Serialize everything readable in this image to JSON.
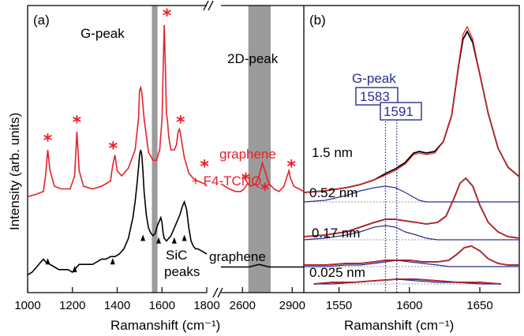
{
  "chart_data": [
    {
      "panel": "(a)",
      "type": "line",
      "xlabel": "Ramanshift (cm⁻¹)",
      "ylabel": "Intensity (arb. units)",
      "x_axis_break": true,
      "x_ticks_left": [
        "1000",
        "1200",
        "1400",
        "1600",
        "1800"
      ],
      "x_ticks_right": [
        "2600",
        "2900"
      ],
      "xlim_left": [
        1000,
        1800
      ],
      "xlim_right": [
        2470,
        2970
      ],
      "shaded_regions": [
        [
          1555,
          1580
        ],
        [
          2635,
          2770
        ]
      ],
      "annotations": [
        "G-peak",
        "2D-peak",
        "SiC",
        "peaks"
      ],
      "series": [
        {
          "name": "graphene + F4-TCNQ",
          "name_lines": [
            "graphene",
            "+ F4-TCNQ"
          ],
          "color": "#e8202a",
          "x": [
            1000,
            1040,
            1070,
            1080,
            1090,
            1100,
            1120,
            1150,
            1190,
            1210,
            1220,
            1230,
            1250,
            1290,
            1330,
            1370,
            1380,
            1390,
            1400,
            1420,
            1450,
            1480,
            1495,
            1500,
            1505,
            1510,
            1520,
            1540,
            1560,
            1575,
            1590,
            1600,
            1605,
            1610,
            1615,
            1620,
            1625,
            1630,
            1640,
            1655,
            1665,
            1672,
            1678,
            1683,
            1690,
            1700,
            1710,
            1720,
            1740,
            1760,
            1790,
            1800
          ],
          "y": [
            0.32,
            0.33,
            0.34,
            0.4,
            0.5,
            0.42,
            0.36,
            0.35,
            0.35,
            0.4,
            0.57,
            0.42,
            0.36,
            0.35,
            0.36,
            0.38,
            0.44,
            0.48,
            0.42,
            0.4,
            0.43,
            0.5,
            0.62,
            0.73,
            0.74,
            0.72,
            0.62,
            0.49,
            0.46,
            0.46,
            0.5,
            0.62,
            0.8,
            0.98,
            0.83,
            0.64,
            0.61,
            0.55,
            0.5,
            0.5,
            0.52,
            0.57,
            0.58,
            0.56,
            0.52,
            0.47,
            0.44,
            0.41,
            0.39,
            0.38,
            0.37,
            0.36
          ],
          "x_right": [
            2470,
            2520,
            2560,
            2590,
            2610,
            2630,
            2650,
            2680,
            2700,
            2720,
            2740,
            2760,
            2790,
            2820,
            2850,
            2870,
            2880,
            2890,
            2910,
            2940,
            2970
          ],
          "y_right": [
            0.37,
            0.35,
            0.34,
            0.34,
            0.35,
            0.37,
            0.36,
            0.37,
            0.4,
            0.45,
            0.41,
            0.37,
            0.35,
            0.34,
            0.36,
            0.4,
            0.42,
            0.39,
            0.36,
            0.35,
            0.34
          ],
          "markers": {
            "symbol": "*",
            "x": [
              1090,
              1220,
              1382,
              1622,
              1683,
              1790
            ],
            "y": [
              0.55,
              0.62,
              0.52,
              1.03,
              0.62,
              0.45
            ],
            "x_right": [
              2620,
              2735,
              2895
            ],
            "y_right": [
              0.4,
              0.36,
              0.45
            ]
          }
        },
        {
          "name": "graphene",
          "color": "#000000",
          "x": [
            1000,
            1020,
            1040,
            1060,
            1070,
            1080,
            1100,
            1120,
            1140,
            1160,
            1180,
            1200,
            1210,
            1230,
            1260,
            1290,
            1310,
            1330,
            1350,
            1370,
            1390,
            1410,
            1430,
            1450,
            1470,
            1480,
            1490,
            1500,
            1505,
            1510,
            1515,
            1520,
            1530,
            1540,
            1550,
            1560,
            1570,
            1580,
            1595,
            1600,
            1605,
            1610,
            1620,
            1640,
            1660,
            1670,
            1680,
            1690,
            1700,
            1710,
            1720,
            1730,
            1740,
            1750,
            1760,
            1780,
            1800
          ],
          "y": [
            0.02,
            0.03,
            0.05,
            0.07,
            0.08,
            0.07,
            0.06,
            0.05,
            0.04,
            0.04,
            0.04,
            0.03,
            0.04,
            0.06,
            0.06,
            0.06,
            0.07,
            0.08,
            0.08,
            0.09,
            0.09,
            0.1,
            0.12,
            0.16,
            0.24,
            0.3,
            0.38,
            0.48,
            0.5,
            0.48,
            0.42,
            0.34,
            0.25,
            0.2,
            0.18,
            0.17,
            0.18,
            0.21,
            0.24,
            0.22,
            0.18,
            0.16,
            0.15,
            0.17,
            0.21,
            0.23,
            0.25,
            0.28,
            0.3,
            0.27,
            0.2,
            0.15,
            0.13,
            0.12,
            0.12,
            0.11,
            0.1
          ],
          "x_right": [
            2470,
            2520,
            2560,
            2600,
            2640,
            2700,
            2760,
            2800,
            2850,
            2900,
            2970
          ],
          "y_right": [
            0.05,
            0.05,
            0.05,
            0.05,
            0.05,
            0.06,
            0.05,
            0.05,
            0.05,
            0.05,
            0.05
          ],
          "markers": {
            "symbol": "▲",
            "x": [
              1090,
              1210,
              1380,
              1515,
              1585,
              1655,
              1700
            ],
            "y": [
              0.06,
              0.03,
              0.06,
              0.15,
              0.14,
              0.14,
              0.15
            ]
          }
        }
      ]
    },
    {
      "panel": "(b)",
      "type": "line",
      "xlabel": "Ramanshift (cm⁻¹)",
      "x_ticks": [
        "1550",
        "1600",
        "1650"
      ],
      "xlim": [
        1525,
        1678
      ],
      "vertical_lines": [
        {
          "x": 1583,
          "label": "1583",
          "style": "dotted",
          "color": "#2b2f8f"
        },
        {
          "x": 1591,
          "label": "1591",
          "style": "dotted",
          "color": "#2b2f8f"
        }
      ],
      "annotation": "G-peak",
      "curve_colors": {
        "measured": "#000000",
        "fit": "#e8202a",
        "g_peak_component": "#2b2f8f",
        "other_components": "#999999"
      },
      "groups": [
        {
          "label": "1.5 nm",
          "x": [
            1525,
            1540,
            1555,
            1565,
            1575,
            1583,
            1590,
            1597,
            1603,
            1607,
            1612,
            1618,
            1624,
            1630,
            1635,
            1638,
            1641,
            1645,
            1650,
            1656,
            1663,
            1670,
            1678
          ],
          "measured": [
            0.58,
            0.59,
            0.61,
            0.63,
            0.66,
            0.7,
            0.73,
            0.77,
            0.83,
            0.84,
            0.83,
            0.84,
            0.9,
            1.07,
            1.39,
            1.55,
            1.6,
            1.53,
            1.33,
            1.08,
            0.86,
            0.74,
            0.68
          ],
          "fit": [
            0.58,
            0.59,
            0.61,
            0.63,
            0.66,
            0.69,
            0.72,
            0.76,
            0.82,
            0.83,
            0.82,
            0.83,
            0.9,
            1.07,
            1.4,
            1.58,
            1.63,
            1.55,
            1.33,
            1.08,
            0.86,
            0.74,
            0.68
          ],
          "g_peak_component": [
            0.52,
            0.53,
            0.56,
            0.59,
            0.61,
            0.62,
            0.61,
            0.58,
            0.55,
            0.53,
            0.52,
            0.52,
            0.52,
            0.52,
            0.52,
            0.52,
            0.52,
            0.52,
            0.52,
            0.52,
            0.52,
            0.52,
            0.52
          ]
        },
        {
          "label": "0.52 nm",
          "x": [
            1525,
            1540,
            1555,
            1565,
            1575,
            1583,
            1590,
            1597,
            1605,
            1612,
            1620,
            1626,
            1632,
            1636,
            1640,
            1645,
            1650,
            1656,
            1663,
            1670,
            1678
          ],
          "measured": [
            0.3,
            0.31,
            0.33,
            0.36,
            0.39,
            0.41,
            0.41,
            0.4,
            0.39,
            0.38,
            0.39,
            0.43,
            0.55,
            0.64,
            0.67,
            0.62,
            0.5,
            0.39,
            0.33,
            0.3,
            0.29
          ],
          "fit": [
            0.3,
            0.31,
            0.33,
            0.36,
            0.39,
            0.41,
            0.41,
            0.4,
            0.39,
            0.38,
            0.39,
            0.43,
            0.55,
            0.64,
            0.67,
            0.62,
            0.5,
            0.39,
            0.33,
            0.3,
            0.29
          ],
          "g_peak_component": [
            0.28,
            0.29,
            0.31,
            0.33,
            0.36,
            0.37,
            0.36,
            0.33,
            0.31,
            0.29,
            0.28,
            0.28,
            0.28,
            0.28,
            0.28,
            0.28,
            0.28,
            0.28,
            0.28,
            0.28,
            0.28
          ]
        },
        {
          "label": "0.17 nm",
          "x": [
            1525,
            1540,
            1555,
            1565,
            1575,
            1583,
            1591,
            1600,
            1610,
            1620,
            1628,
            1634,
            1639,
            1644,
            1650,
            1656,
            1663,
            1670,
            1678
          ],
          "measured": [
            0.12,
            0.12,
            0.13,
            0.13,
            0.14,
            0.15,
            0.15,
            0.15,
            0.14,
            0.14,
            0.15,
            0.19,
            0.23,
            0.24,
            0.21,
            0.16,
            0.13,
            0.12,
            0.12
          ],
          "fit": [
            0.12,
            0.12,
            0.13,
            0.13,
            0.14,
            0.15,
            0.15,
            0.15,
            0.14,
            0.14,
            0.15,
            0.19,
            0.23,
            0.24,
            0.21,
            0.16,
            0.13,
            0.12,
            0.12
          ],
          "g_peak_component": [
            0.11,
            0.11,
            0.12,
            0.12,
            0.13,
            0.14,
            0.15,
            0.14,
            0.13,
            0.12,
            0.11,
            0.11,
            0.11,
            0.11,
            0.11,
            0.11,
            0.11,
            0.11,
            0.11
          ]
        },
        {
          "label": "0.025 nm",
          "x": [
            1532,
            1545,
            1560,
            1575,
            1591,
            1605,
            1620,
            1635,
            1650,
            1665
          ],
          "measured": [
            0.0,
            0.01,
            0.01,
            0.02,
            0.03,
            0.03,
            0.02,
            0.01,
            0.01,
            0.0
          ],
          "fit": [
            0.0,
            0.01,
            0.01,
            0.02,
            0.03,
            0.03,
            0.02,
            0.01,
            0.01,
            0.0
          ],
          "g_peak_component": [
            0.0,
            0.0,
            0.01,
            0.02,
            0.03,
            0.02,
            0.01,
            0.01,
            0.0,
            0.0
          ]
        }
      ]
    }
  ]
}
